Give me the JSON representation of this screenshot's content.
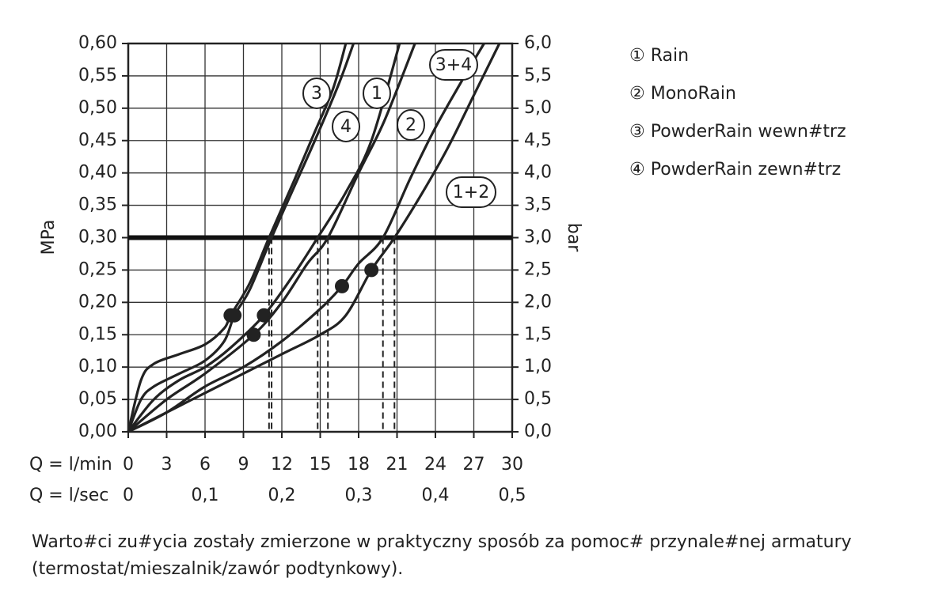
{
  "chart_data": {
    "type": "line",
    "y_label": "MPa",
    "y2_label": "bar",
    "x_label": "Q = l/min",
    "x2_label": "Q = l/sec",
    "xlim": [
      0,
      30
    ],
    "xticks": [
      0,
      3,
      6,
      9,
      12,
      15,
      18,
      21,
      24,
      27,
      30
    ],
    "x2lim": [
      0,
      0.5
    ],
    "x2ticks": [
      0,
      {
        "value": 0.1,
        "label": "0,1"
      },
      {
        "value": 0.2,
        "label": "0,2"
      },
      {
        "value": 0.3,
        "label": "0,3"
      },
      {
        "value": 0.4,
        "label": "0,4"
      },
      {
        "value": 0.5,
        "label": "0,5"
      }
    ],
    "ylim": [
      0,
      0.6
    ],
    "yticks": [
      {
        "value": 0,
        "label": "0,00"
      },
      {
        "value": 0.05,
        "label": "0,05"
      },
      {
        "value": 0.1,
        "label": "0,10"
      },
      {
        "value": 0.15,
        "label": "0,15"
      },
      {
        "value": 0.2,
        "label": "0,20"
      },
      {
        "value": 0.25,
        "label": "0,25"
      },
      {
        "value": 0.3,
        "label": "0,30"
      },
      {
        "value": 0.35,
        "label": "0,35"
      },
      {
        "value": 0.4,
        "label": "0,40"
      },
      {
        "value": 0.45,
        "label": "0,45"
      },
      {
        "value": 0.5,
        "label": "0,50"
      },
      {
        "value": 0.55,
        "label": "0,55"
      },
      {
        "value": 0.6,
        "label": "0,60"
      }
    ],
    "y2lim": [
      0,
      6
    ],
    "y2ticks": [
      {
        "value": 0,
        "label": "0,0"
      },
      {
        "value": 0.5,
        "label": "0,5"
      },
      {
        "value": 1,
        "label": "1,0"
      },
      {
        "value": 1.5,
        "label": "1,5"
      },
      {
        "value": 2,
        "label": "2,0"
      },
      {
        "value": 2.5,
        "label": "2,5"
      },
      {
        "value": 3,
        "label": "3,0"
      },
      {
        "value": 3.5,
        "label": "3,5"
      },
      {
        "value": 4,
        "label": "4,0"
      },
      {
        "value": 4.5,
        "label": "4,5"
      },
      {
        "value": 5,
        "label": "5,0"
      },
      {
        "value": 5.5,
        "label": "5,5"
      },
      {
        "value": 6,
        "label": "6,0"
      }
    ],
    "grid": true,
    "reference_line": 0.3,
    "series": [
      {
        "name": "3",
        "color": "#222222",
        "x": [
          0,
          1,
          2,
          4,
          6,
          7.5,
          8,
          9.5,
          11,
          13,
          14.5,
          16,
          17
        ],
        "values": [
          0,
          0.08,
          0.105,
          0.12,
          0.135,
          0.16,
          0.18,
          0.23,
          0.3,
          0.39,
          0.46,
          0.53,
          0.6
        ],
        "marker_x": 8,
        "marker_y": 0.18
      },
      {
        "name": "1",
        "color": "#222222",
        "x": [
          0,
          2,
          4,
          6,
          8,
          10.6,
          13,
          14.8,
          17,
          19,
          21.2
        ],
        "values": [
          0,
          0.05,
          0.08,
          0.1,
          0.13,
          0.18,
          0.245,
          0.3,
          0.37,
          0.45,
          0.6
        ],
        "marker_x": 10.6,
        "marker_y": 0.18
      },
      {
        "name": "4",
        "color": "#222222",
        "x": [
          0,
          1,
          2,
          4,
          6,
          7.5,
          8.3,
          9.5,
          11.2,
          13,
          14.8,
          16.5,
          17.6
        ],
        "values": [
          0,
          0.05,
          0.07,
          0.09,
          0.11,
          0.14,
          0.18,
          0.22,
          0.3,
          0.38,
          0.46,
          0.54,
          0.6
        ],
        "marker_x": 8.3,
        "marker_y": 0.18
      },
      {
        "name": "2",
        "color": "#222222",
        "x": [
          0,
          3,
          6,
          9.8,
          12,
          14,
          15.6,
          18,
          20,
          22.4
        ],
        "values": [
          0,
          0.05,
          0.09,
          0.15,
          0.2,
          0.26,
          0.3,
          0.4,
          0.48,
          0.6
        ],
        "marker_x": 9.8,
        "marker_y": 0.15
      },
      {
        "name": "3+4",
        "color": "#222222",
        "x": [
          0,
          3,
          6,
          9,
          12,
          15,
          16.7,
          18,
          19.9,
          22,
          24,
          26,
          27.8
        ],
        "values": [
          0,
          0.03,
          0.07,
          0.1,
          0.14,
          0.19,
          0.225,
          0.26,
          0.3,
          0.39,
          0.47,
          0.54,
          0.6
        ],
        "marker_x": 16.7,
        "marker_y": 0.225
      },
      {
        "name": "1+2",
        "color": "#222222",
        "x": [
          0,
          4,
          8,
          12,
          15,
          17,
          19,
          20.8,
          23,
          25,
          27,
          29
        ],
        "values": [
          0,
          0.04,
          0.08,
          0.12,
          0.15,
          0.18,
          0.25,
          0.3,
          0.37,
          0.44,
          0.52,
          0.6
        ],
        "marker_x": 19,
        "marker_y": 0.25
      }
    ],
    "legend": [
      "① Rain",
      "② MonoRain",
      "③ PowderRain wewn#trz",
      "④ PowderRain zewn#trz"
    ],
    "note_lines": [
      "Warto#ci zu#ycia zostały zmierzone w praktyczny sposób za pomoc# przynale#nej armatury",
      "(termostat/mieszalnik/zawór podtynkowy)."
    ]
  }
}
